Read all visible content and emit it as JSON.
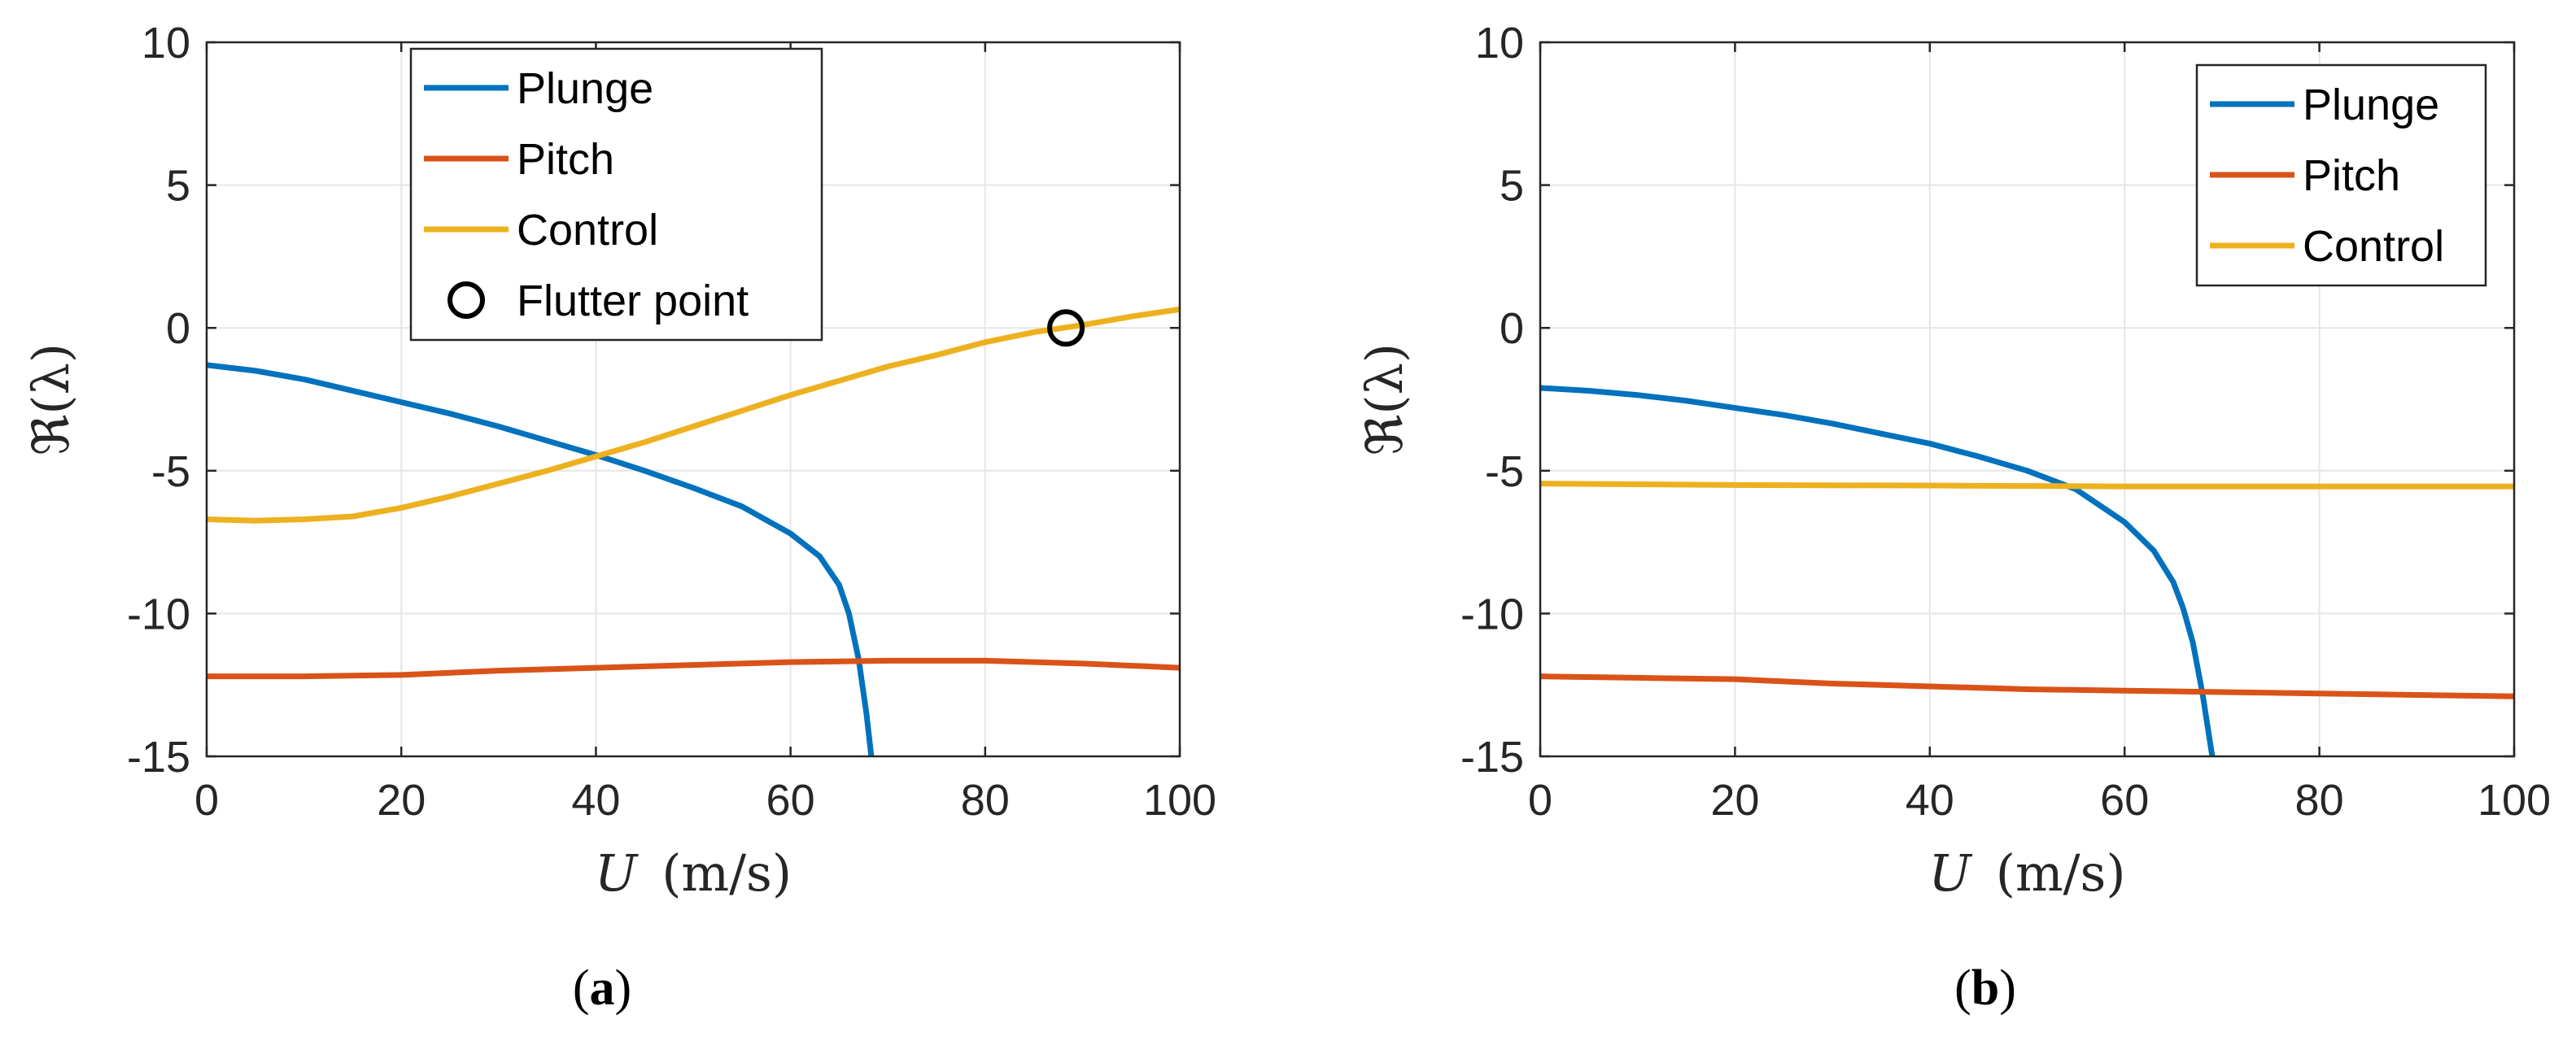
{
  "chart_data": [
    {
      "type": "line",
      "panel_label": "a",
      "xlabel_var": "U",
      "xlabel_unit": "(m/s)",
      "ylabel": "ℜ(λ)",
      "xlim": [
        0,
        100
      ],
      "ylim": [
        -15,
        10
      ],
      "xticks": [
        0,
        20,
        40,
        60,
        80,
        100
      ],
      "yticks": [
        10,
        5,
        0,
        -5,
        -10,
        -15
      ],
      "grid": true,
      "legend_position": "top-center",
      "series": [
        {
          "name": "Plunge",
          "color": "#0072BD",
          "x": [
            0,
            5,
            10,
            15,
            20,
            25,
            30,
            35,
            40,
            45,
            50,
            55,
            60,
            63,
            65,
            66,
            67,
            67.8,
            68.3
          ],
          "y": [
            -1.3,
            -1.5,
            -1.8,
            -2.2,
            -2.6,
            -3.0,
            -3.45,
            -3.95,
            -4.45,
            -5.0,
            -5.6,
            -6.25,
            -7.2,
            -8.0,
            -9.0,
            -10.0,
            -11.6,
            -13.5,
            -15.0
          ]
        },
        {
          "name": "Pitch",
          "color": "#D95319",
          "x": [
            0,
            10,
            20,
            30,
            40,
            50,
            60,
            70,
            80,
            90,
            100
          ],
          "y": [
            -12.2,
            -12.2,
            -12.15,
            -12.0,
            -11.9,
            -11.8,
            -11.7,
            -11.65,
            -11.65,
            -11.75,
            -11.9
          ]
        },
        {
          "name": "Control",
          "color": "#EDB120",
          "x": [
            0,
            5,
            10,
            15,
            20,
            25,
            30,
            35,
            40,
            45,
            50,
            55,
            60,
            65,
            70,
            75,
            80,
            85,
            90,
            95,
            100
          ],
          "y": [
            -6.7,
            -6.75,
            -6.7,
            -6.6,
            -6.3,
            -5.9,
            -5.45,
            -5.0,
            -4.5,
            -4.0,
            -3.45,
            -2.9,
            -2.35,
            -1.85,
            -1.35,
            -0.95,
            -0.5,
            -0.15,
            0.1,
            0.4,
            0.65
          ]
        }
      ],
      "flutter_point": {
        "name": "Flutter point",
        "x": 88.3,
        "y": 0
      }
    },
    {
      "type": "line",
      "panel_label": "b",
      "xlabel_var": "U",
      "xlabel_unit": "(m/s)",
      "ylabel": "ℜ(λ)",
      "xlim": [
        0,
        100
      ],
      "ylim": [
        -15,
        10
      ],
      "xticks": [
        0,
        20,
        40,
        60,
        80,
        100
      ],
      "yticks": [
        10,
        5,
        0,
        -5,
        -10,
        -15
      ],
      "grid": true,
      "legend_position": "top-right",
      "series": [
        {
          "name": "Plunge",
          "color": "#0072BD",
          "x": [
            0,
            5,
            10,
            15,
            20,
            25,
            30,
            35,
            40,
            45,
            50,
            55,
            60,
            63,
            65,
            66,
            67,
            68,
            69
          ],
          "y": [
            -2.1,
            -2.2,
            -2.35,
            -2.55,
            -2.8,
            -3.05,
            -3.35,
            -3.7,
            -4.05,
            -4.5,
            -5.0,
            -5.65,
            -6.8,
            -7.8,
            -8.9,
            -9.8,
            -11.0,
            -12.8,
            -15.0
          ]
        },
        {
          "name": "Pitch",
          "color": "#D95319",
          "x": [
            0,
            10,
            20,
            30,
            40,
            50,
            60,
            70,
            80,
            90,
            100
          ],
          "y": [
            -12.2,
            -12.25,
            -12.3,
            -12.45,
            -12.55,
            -12.65,
            -12.7,
            -12.75,
            -12.8,
            -12.85,
            -12.9
          ]
        },
        {
          "name": "Control",
          "color": "#EDB120",
          "x": [
            0,
            20,
            40,
            60,
            80,
            100
          ],
          "y": [
            -5.45,
            -5.5,
            -5.52,
            -5.55,
            -5.55,
            -5.55
          ]
        }
      ]
    }
  ]
}
